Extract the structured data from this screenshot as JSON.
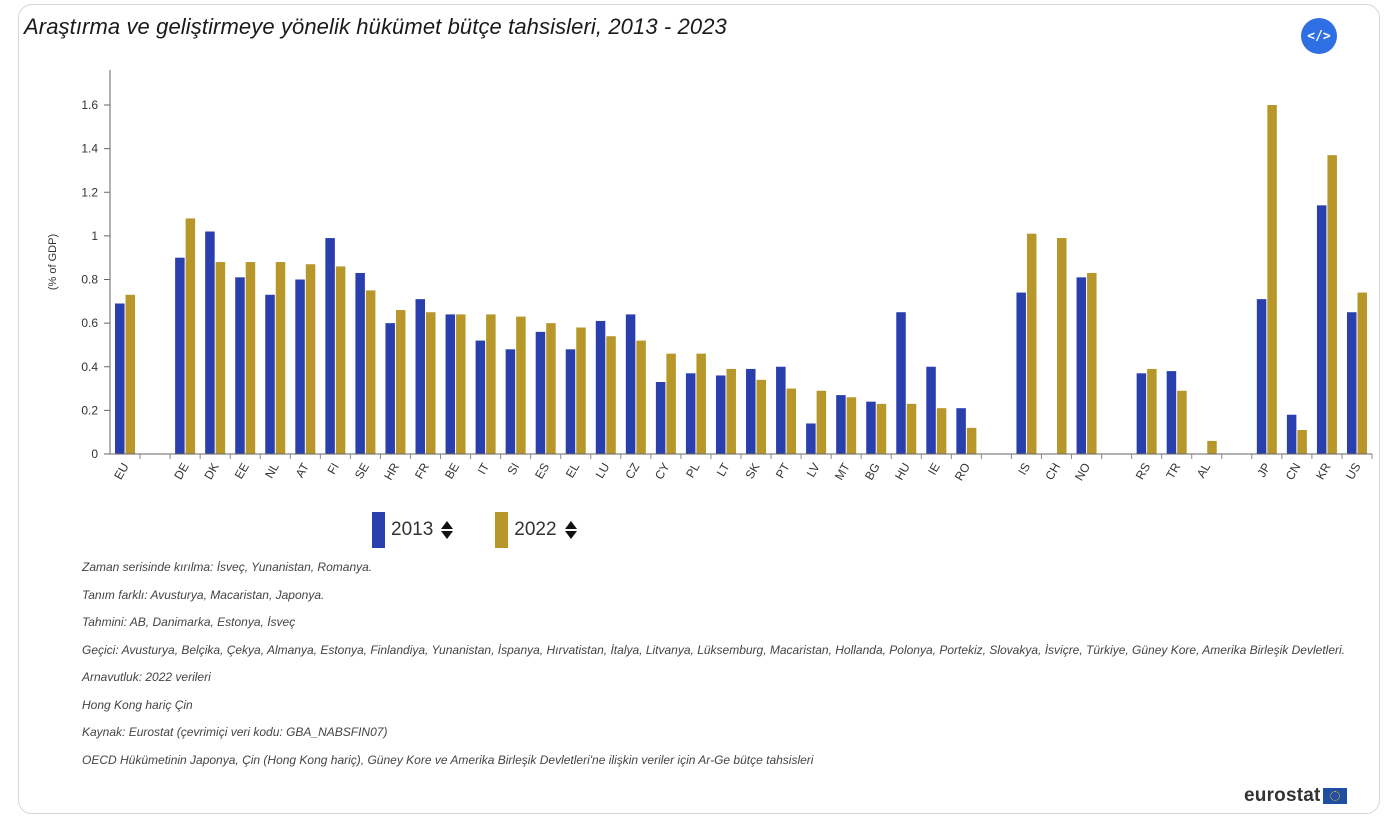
{
  "title": "Araştırma ve geliştirmeye yönelik hükümet bütçe tahsisleri, 2013 - 2023",
  "embed_button_label": "</>",
  "chart_data": {
    "type": "bar",
    "ylabel": "(% of GDP)",
    "ylim": [
      0,
      1.7
    ],
    "yticks": [
      0,
      0.2,
      0.4,
      0.6,
      0.8,
      1,
      1.2,
      1.4,
      1.6
    ],
    "ytick_labels": [
      "0",
      "0.2",
      "0.4",
      "0.6",
      "0.8",
      "1",
      "1.2",
      "1.4",
      "1.6"
    ],
    "categories": [
      "EU",
      "",
      "DE",
      "DK",
      "EE",
      "NL",
      "AT",
      "FI",
      "SE",
      "HR",
      "FR",
      "BE",
      "IT",
      "SI",
      "ES",
      "EL",
      "LU",
      "CZ",
      "CY",
      "PL",
      "LT",
      "SK",
      "PT",
      "LV",
      "MT",
      "BG",
      "HU",
      "IE",
      "RO",
      "",
      "IS",
      "CH",
      "NO",
      "",
      "RS",
      "TR",
      "AL",
      "",
      "JP",
      "CN",
      "KR",
      "US"
    ],
    "series": [
      {
        "name": "2013",
        "color": "#2a3fae",
        "values": [
          0.69,
          null,
          0.9,
          1.02,
          0.81,
          0.73,
          0.8,
          0.99,
          0.83,
          0.6,
          0.71,
          0.64,
          0.52,
          0.48,
          0.56,
          0.48,
          0.61,
          0.64,
          0.33,
          0.37,
          0.36,
          0.39,
          0.4,
          0.14,
          0.27,
          0.24,
          0.65,
          0.4,
          0.21,
          null,
          0.74,
          null,
          0.81,
          null,
          0.37,
          0.38,
          null,
          null,
          0.71,
          0.18,
          1.14,
          0.65
        ]
      },
      {
        "name": "2022",
        "color": "#b8972a",
        "values": [
          0.73,
          null,
          1.08,
          0.88,
          0.88,
          0.88,
          0.87,
          0.86,
          0.75,
          0.66,
          0.65,
          0.64,
          0.64,
          0.63,
          0.6,
          0.58,
          0.54,
          0.52,
          0.46,
          0.46,
          0.39,
          0.34,
          0.3,
          0.29,
          0.26,
          0.23,
          0.23,
          0.21,
          0.12,
          null,
          1.01,
          0.99,
          0.83,
          null,
          0.39,
          0.29,
          0.06,
          null,
          1.6,
          0.11,
          1.37,
          0.74
        ]
      }
    ],
    "legend_position": "bottom-left",
    "grid": false
  },
  "legend": [
    {
      "label": "2013",
      "color": "#2a3fae"
    },
    {
      "label": "2022",
      "color": "#b8972a"
    }
  ],
  "notes": [
    "Zaman serisinde kırılma: İsveç, Yunanistan, Romanya.",
    "Tanım farklı: Avusturya, Macaristan, Japonya.",
    "Tahmini: AB, Danimarka, Estonya, İsveç",
    "Geçici: Avusturya, Belçika, Çekya, Almanya, Estonya, Finlandiya, Yunanistan, İspanya, Hırvatistan, İtalya, Litvanya, Lüksemburg, Macaristan, Hollanda, Polonya, Portekiz, Slovakya, İsviçre, Türkiye, Güney Kore, Amerika Birleşik Devletleri.",
    "Arnavutluk: 2022 verileri",
    "Hong Kong hariç Çin",
    "Kaynak: Eurostat (çevrimiçi veri kodu: GBA_NABSFIN07)",
    "OECD Hükümetinin Japonya, Çin (Hong Kong hariç), Güney Kore ve Amerika Birleşik Devletleri'ne ilişkin veriler için Ar-Ge bütçe tahsisleri"
  ],
  "logo_text": "eurostat"
}
